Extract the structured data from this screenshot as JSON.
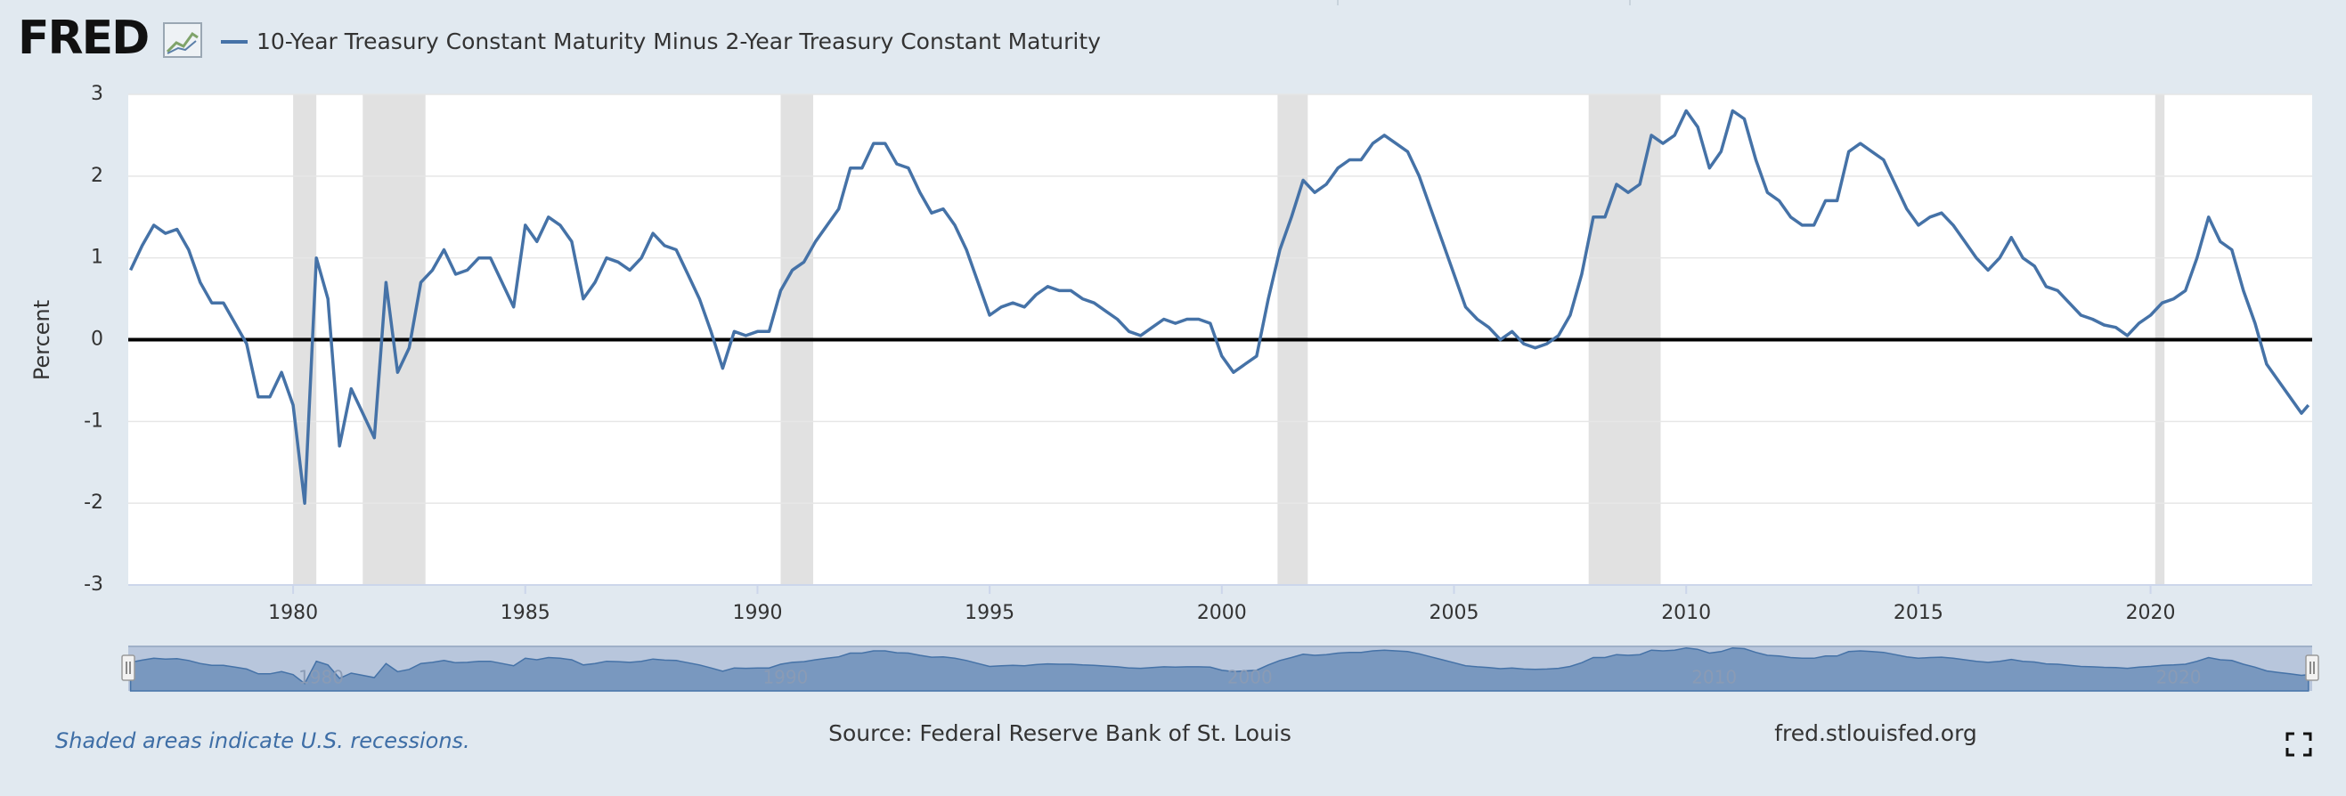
{
  "logo": "FRED",
  "chart_data": {
    "type": "line",
    "y_label": "Percent",
    "xlim": [
      1976.45,
      2023.48
    ],
    "ylim": [
      -3,
      3
    ],
    "xticks": [
      1980,
      1985,
      1990,
      1995,
      2000,
      2005,
      2010,
      2015,
      2020
    ],
    "yticks": [
      -3,
      -2,
      -1,
      0,
      1,
      2,
      3
    ],
    "grid": true,
    "reference_line": 0,
    "recessions": [
      [
        1980.0,
        1980.5
      ],
      [
        1981.5,
        1982.85
      ],
      [
        1990.5,
        1991.2
      ],
      [
        2001.2,
        2001.85
      ],
      [
        2007.9,
        2009.45
      ],
      [
        2020.1,
        2020.3
      ]
    ],
    "navigator_xticks": [
      1980,
      1990,
      2000,
      2010,
      2020
    ],
    "series": [
      {
        "name": "10-Year Treasury Constant Maturity Minus 2-Year Treasury Constant Maturity",
        "color": "#4572a7",
        "x": [
          1976.5,
          1976.75,
          1977,
          1977.25,
          1977.5,
          1977.75,
          1978,
          1978.25,
          1978.5,
          1978.75,
          1979,
          1979.25,
          1979.5,
          1979.75,
          1980,
          1980.25,
          1980.5,
          1980.75,
          1981,
          1981.25,
          1981.5,
          1981.75,
          1982,
          1982.25,
          1982.5,
          1982.75,
          1983,
          1983.25,
          1983.5,
          1983.75,
          1984,
          1984.25,
          1984.5,
          1984.75,
          1985,
          1985.25,
          1985.5,
          1985.75,
          1986,
          1986.25,
          1986.5,
          1986.75,
          1987,
          1987.25,
          1987.5,
          1987.75,
          1988,
          1988.25,
          1988.5,
          1988.75,
          1989,
          1989.25,
          1989.5,
          1989.75,
          1990,
          1990.25,
          1990.5,
          1990.75,
          1991,
          1991.25,
          1991.5,
          1991.75,
          1992,
          1992.25,
          1992.5,
          1992.75,
          1993,
          1993.25,
          1993.5,
          1993.75,
          1994,
          1994.25,
          1994.5,
          1994.75,
          1995,
          1995.25,
          1995.5,
          1995.75,
          1996,
          1996.25,
          1996.5,
          1996.75,
          1997,
          1997.25,
          1997.5,
          1997.75,
          1998,
          1998.25,
          1998.5,
          1998.75,
          1999,
          1999.25,
          1999.5,
          1999.75,
          2000,
          2000.25,
          2000.5,
          2000.75,
          2001,
          2001.25,
          2001.5,
          2001.75,
          2002,
          2002.25,
          2002.5,
          2002.75,
          2003,
          2003.25,
          2003.5,
          2003.75,
          2004,
          2004.25,
          2004.5,
          2004.75,
          2005,
          2005.25,
          2005.5,
          2005.75,
          2006,
          2006.25,
          2006.5,
          2006.75,
          2007,
          2007.25,
          2007.5,
          2007.75,
          2008,
          2008.25,
          2008.5,
          2008.75,
          2009,
          2009.25,
          2009.5,
          2009.75,
          2010,
          2010.25,
          2010.5,
          2010.75,
          2011,
          2011.25,
          2011.5,
          2011.75,
          2012,
          2012.25,
          2012.5,
          2012.75,
          2013,
          2013.25,
          2013.5,
          2013.75,
          2014,
          2014.25,
          2014.5,
          2014.75,
          2015,
          2015.25,
          2015.5,
          2015.75,
          2016,
          2016.25,
          2016.5,
          2016.75,
          2017,
          2017.25,
          2017.5,
          2017.75,
          2018,
          2018.25,
          2018.5,
          2018.75,
          2019,
          2019.25,
          2019.5,
          2019.75,
          2020,
          2020.25,
          2020.5,
          2020.75,
          2021,
          2021.25,
          2021.5,
          2021.75,
          2022,
          2022.25,
          2022.5,
          2022.75,
          2023,
          2023.25,
          2023.4
        ],
        "values": [
          0.85,
          1.15,
          1.4,
          1.3,
          1.35,
          1.1,
          0.7,
          0.45,
          0.45,
          0.2,
          -0.05,
          -0.7,
          -0.7,
          -0.4,
          -0.8,
          -2.0,
          1.0,
          0.5,
          -1.3,
          -0.6,
          -0.9,
          -1.2,
          0.7,
          -0.4,
          -0.1,
          0.7,
          0.85,
          1.1,
          0.8,
          0.85,
          1.0,
          1.0,
          0.7,
          0.4,
          1.4,
          1.2,
          1.5,
          1.4,
          1.2,
          0.5,
          0.7,
          1.0,
          0.95,
          0.85,
          1.0,
          1.3,
          1.15,
          1.1,
          0.8,
          0.5,
          0.1,
          -0.35,
          0.1,
          0.05,
          0.1,
          0.1,
          0.6,
          0.85,
          0.95,
          1.2,
          1.4,
          1.6,
          2.1,
          2.1,
          2.4,
          2.4,
          2.15,
          2.1,
          1.8,
          1.55,
          1.6,
          1.4,
          1.1,
          0.7,
          0.3,
          0.4,
          0.45,
          0.4,
          0.55,
          0.65,
          0.6,
          0.6,
          0.5,
          0.45,
          0.35,
          0.25,
          0.1,
          0.05,
          0.15,
          0.25,
          0.2,
          0.25,
          0.25,
          0.2,
          -0.2,
          -0.4,
          -0.3,
          -0.2,
          0.5,
          1.1,
          1.5,
          1.95,
          1.8,
          1.9,
          2.1,
          2.2,
          2.2,
          2.4,
          2.5,
          2.4,
          2.3,
          2.0,
          1.6,
          1.2,
          0.8,
          0.4,
          0.25,
          0.15,
          0.0,
          0.1,
          -0.05,
          -0.1,
          -0.05,
          0.05,
          0.3,
          0.8,
          1.5,
          1.5,
          1.9,
          1.8,
          1.9,
          2.5,
          2.4,
          2.5,
          2.8,
          2.6,
          2.1,
          2.3,
          2.8,
          2.7,
          2.2,
          1.8,
          1.7,
          1.5,
          1.4,
          1.4,
          1.7,
          1.7,
          2.3,
          2.4,
          2.3,
          2.2,
          1.9,
          1.6,
          1.4,
          1.5,
          1.55,
          1.4,
          1.2,
          1.0,
          0.85,
          1.0,
          1.25,
          1.0,
          0.9,
          0.65,
          0.6,
          0.45,
          0.3,
          0.25,
          0.18,
          0.15,
          0.05,
          0.2,
          0.3,
          0.45,
          0.5,
          0.6,
          1.0,
          1.5,
          1.2,
          1.1,
          0.6,
          0.2,
          -0.3,
          -0.5,
          -0.7,
          -0.9,
          -0.8
        ]
      }
    ]
  },
  "footer": {
    "recession_note": "Shaded areas indicate U.S. recessions.",
    "source": "Source: Federal Reserve Bank of St. Louis",
    "site": "fred.stlouisfed.org"
  }
}
